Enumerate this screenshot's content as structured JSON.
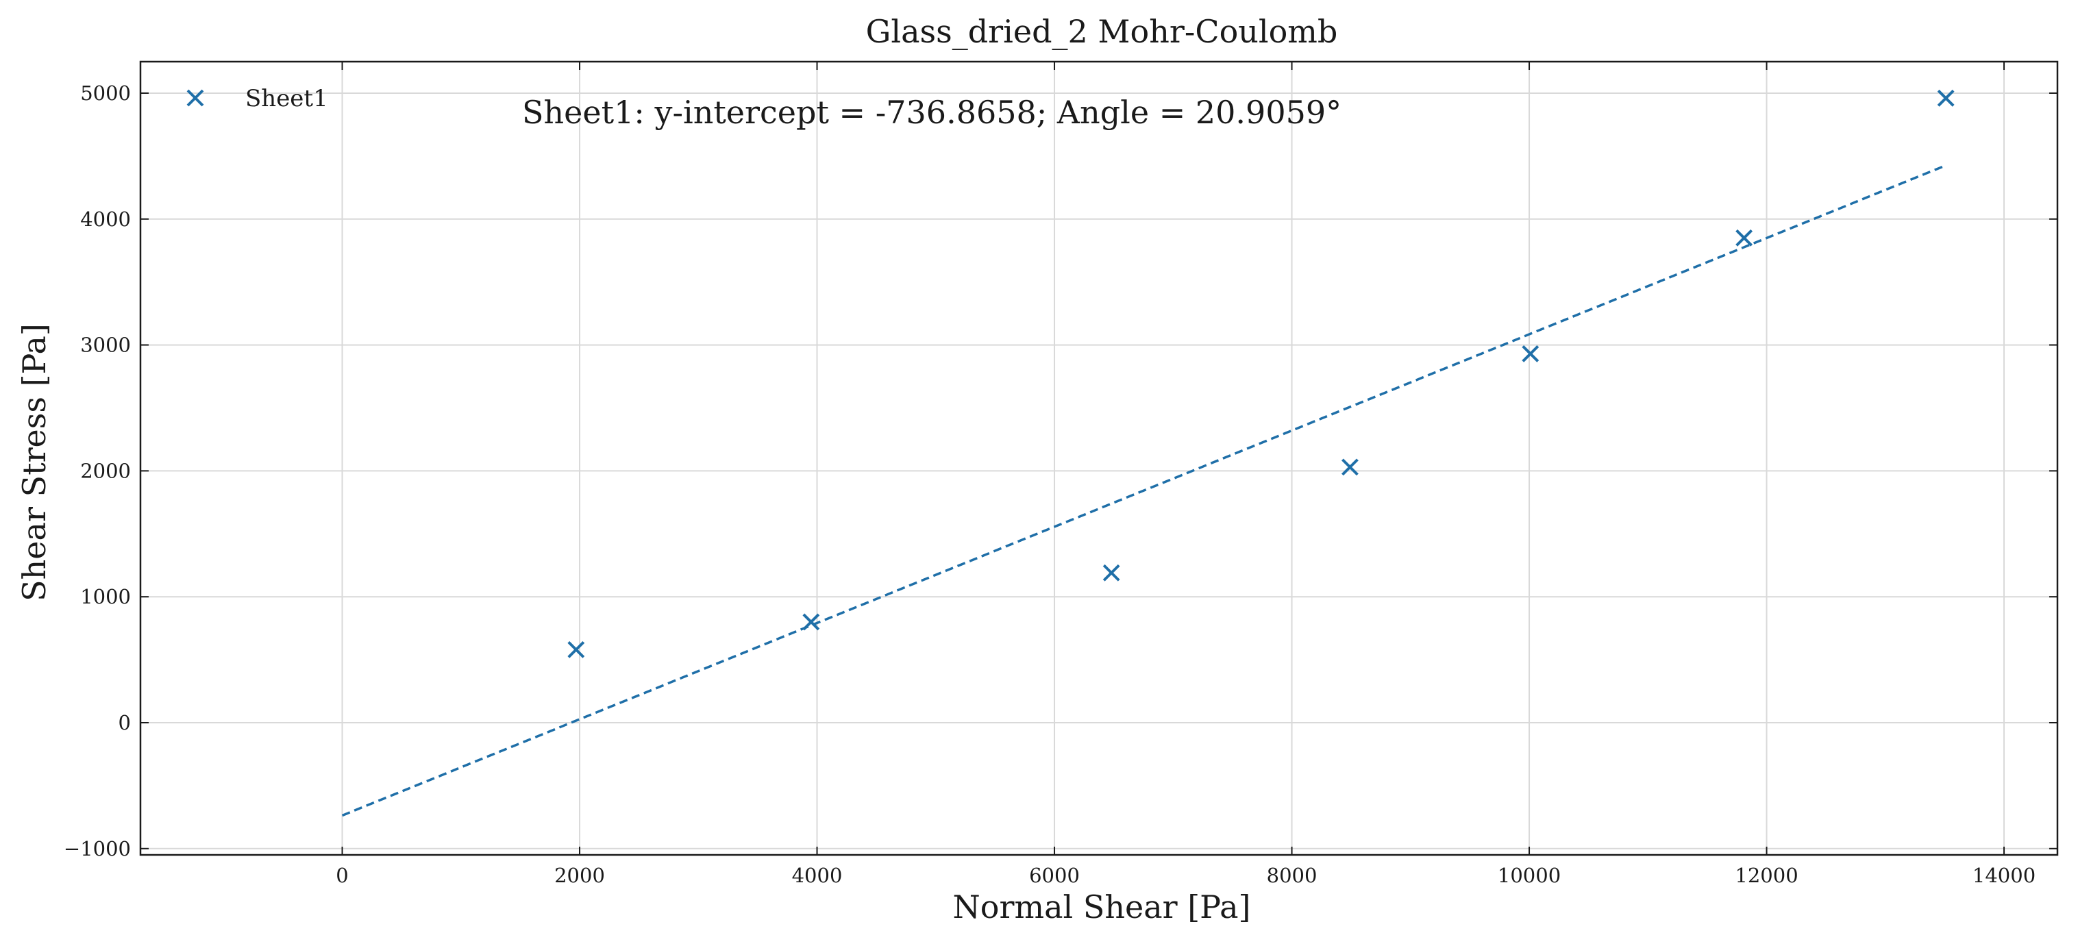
{
  "chart_data": {
    "type": "scatter",
    "title": "Glass_dried_2 Mohr-Coulomb",
    "xlabel": "Normal Shear [Pa]",
    "ylabel": "Shear Stress [Pa]",
    "xlim": [
      -1700,
      14450
    ],
    "ylim": [
      -1050,
      5250
    ],
    "xticks": [
      0,
      2000,
      4000,
      6000,
      8000,
      10000,
      12000,
      14000
    ],
    "xtick_labels": [
      "0",
      "2000",
      "4000",
      "6000",
      "8000",
      "10000",
      "12000",
      "14000"
    ],
    "yticks": [
      -1000,
      0,
      1000,
      2000,
      3000,
      4000,
      5000
    ],
    "ytick_labels": [
      "−1000",
      "0",
      "1000",
      "2000",
      "3000",
      "4000",
      "5000"
    ],
    "grid": true,
    "legend_position": "top-left",
    "series": [
      {
        "name": "Sheet1",
        "marker": "x",
        "color": "#1f6fa8",
        "x": [
          1970,
          3950,
          6480,
          8490,
          10010,
          11810,
          13510
        ],
        "y": [
          580,
          800,
          1190,
          2030,
          2930,
          3850,
          4960
        ]
      }
    ],
    "fit_line": {
      "style": "dashed",
      "color": "#1f6fa8",
      "x": [
        0,
        13510
      ],
      "y": [
        -736.8658,
        4426.1
      ]
    },
    "annotation": "Sheet1: y-intercept = -736.8658; Angle = 20.9059°"
  }
}
